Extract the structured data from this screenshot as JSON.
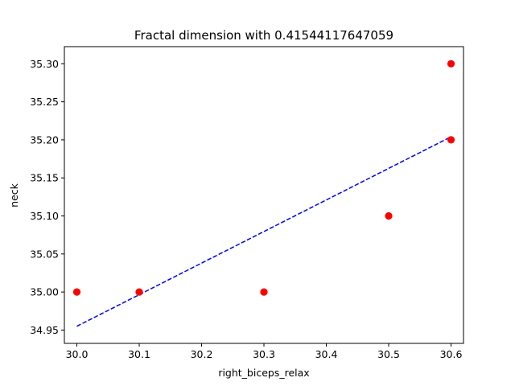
{
  "chart_data": {
    "type": "scatter",
    "title": "Fractal dimension with 0.41544117647059",
    "xlabel": "right_biceps_relax",
    "ylabel": "neck",
    "xlim": [
      29.98,
      30.62
    ],
    "ylim": [
      34.9325,
      35.3225
    ],
    "x_ticks": [
      "30.0",
      "30.1",
      "30.2",
      "30.3",
      "30.4",
      "30.5",
      "30.6"
    ],
    "y_ticks": [
      "34.95",
      "35.00",
      "35.05",
      "35.10",
      "35.15",
      "35.20",
      "35.25",
      "35.30"
    ],
    "grid": false,
    "series": [
      {
        "kind": "points",
        "color": "#ff0000",
        "points": [
          [
            30.0,
            35.0
          ],
          [
            30.1,
            35.0
          ],
          [
            30.3,
            35.0
          ],
          [
            30.5,
            35.1
          ],
          [
            30.6,
            35.2
          ],
          [
            30.6,
            35.3
          ]
        ]
      },
      {
        "kind": "fit-line",
        "color": "#0000ff",
        "style": "dashed",
        "x": [
          30.0,
          30.6
        ],
        "y": [
          34.955,
          35.204
        ]
      }
    ]
  }
}
